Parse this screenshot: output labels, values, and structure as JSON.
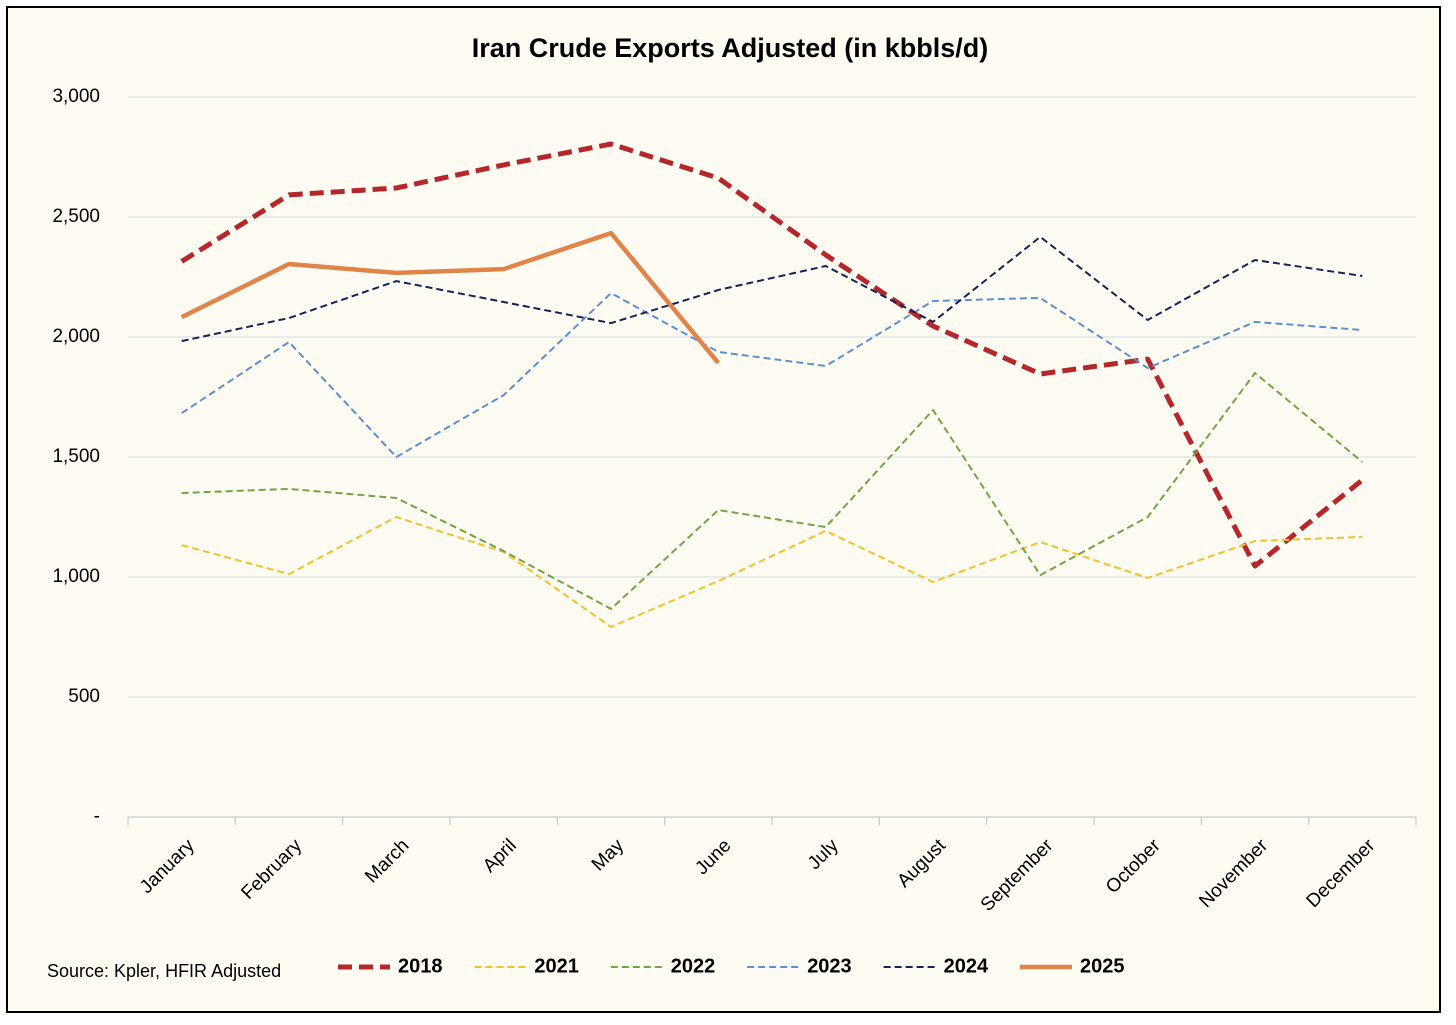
{
  "chart_data": {
    "type": "line",
    "title": "Iran Crude Exports Adjusted (in kbbls/d)",
    "source": "Source: Kpler, HFIR Adjusted",
    "categories": [
      "January",
      "February",
      "March",
      "April",
      "May",
      "June",
      "July",
      "August",
      "September",
      "October",
      "November",
      "December"
    ],
    "ylim": [
      0,
      3000
    ],
    "yticks": [
      {
        "value": 0,
        "label": "-"
      },
      500,
      {
        "value": 1000,
        "label": "1,000"
      },
      {
        "value": 1500,
        "label": "1,500"
      },
      {
        "value": 2000,
        "label": "2,000"
      },
      {
        "value": 2500,
        "label": "2,500"
      },
      {
        "value": 3000,
        "label": "3,000"
      }
    ],
    "grid": true,
    "legend": "bottom",
    "series": [
      {
        "name": "2018",
        "color": "#b5272a",
        "style": "bold-dashed",
        "values": [
          2315,
          2592,
          2621,
          2717,
          2804,
          2662,
          2342,
          2046,
          1846,
          1908,
          1046,
          1404
        ]
      },
      {
        "name": "2021",
        "color": "#f2c12e",
        "style": "dashed",
        "values": [
          1133,
          1012,
          1250,
          1104,
          792,
          983,
          1192,
          979,
          1146,
          996,
          1150,
          1167
        ]
      },
      {
        "name": "2022",
        "color": "#70a645",
        "style": "dashed",
        "values": [
          1350,
          1367,
          1329,
          1108,
          867,
          1279,
          1208,
          1696,
          1008,
          1250,
          1850,
          1479
        ]
      },
      {
        "name": "2023",
        "color": "#5b8fd4",
        "style": "dashed",
        "values": [
          1683,
          1979,
          1500,
          1758,
          2183,
          1938,
          1879,
          2150,
          2163,
          1871,
          2063,
          2029
        ]
      },
      {
        "name": "2024",
        "color": "#13235c",
        "style": "dashed",
        "values": [
          1983,
          2079,
          2233,
          2146,
          2058,
          2196,
          2296,
          2063,
          2417,
          2071,
          2321,
          2254
        ]
      },
      {
        "name": "2025",
        "color": "#e0844a",
        "style": "solid",
        "values": [
          2083,
          2304,
          2267,
          2283,
          2433,
          1892,
          null,
          null,
          null,
          null,
          null,
          null
        ]
      }
    ]
  }
}
